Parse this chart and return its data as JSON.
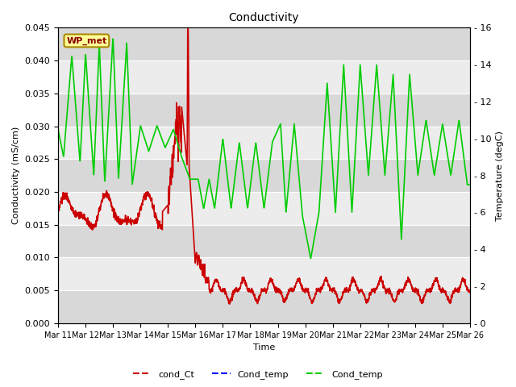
{
  "title": "Conductivity",
  "ylabel_left": "Conductivity (mS/cm)",
  "ylabel_right": "Temperature (degC)",
  "xlabel": "Time",
  "ylim_left": [
    0,
    0.045
  ],
  "ylim_right": [
    0,
    16
  ],
  "yticks_left": [
    0.0,
    0.005,
    0.01,
    0.015,
    0.02,
    0.025,
    0.03,
    0.035,
    0.04,
    0.045
  ],
  "yticks_right": [
    0,
    2,
    4,
    6,
    8,
    10,
    12,
    14,
    16
  ],
  "xtick_labels": [
    "Mar 11",
    "Mar 12",
    "Mar 13",
    "Mar 14",
    "Mar 15",
    "Mar 16",
    "Mar 17",
    "Mar 18",
    "Mar 19",
    "Mar 20",
    "Mar 21",
    "Mar 22",
    "Mar 23",
    "Mar 24",
    "Mar 25",
    "Mar 26"
  ],
  "background_color": "#ffffff",
  "plot_bg_light": "#ececec",
  "plot_bg_dark": "#d8d8d8",
  "legend_labels": [
    "cond_Ct",
    "Cond_temp",
    "Cond_temp"
  ],
  "legend_colors": [
    "#ff0000",
    "#0000ff",
    "#00cc00"
  ],
  "wp_met_label": "WP_met",
  "wp_met_bg": "#ffff99",
  "wp_met_border": "#aa8800"
}
